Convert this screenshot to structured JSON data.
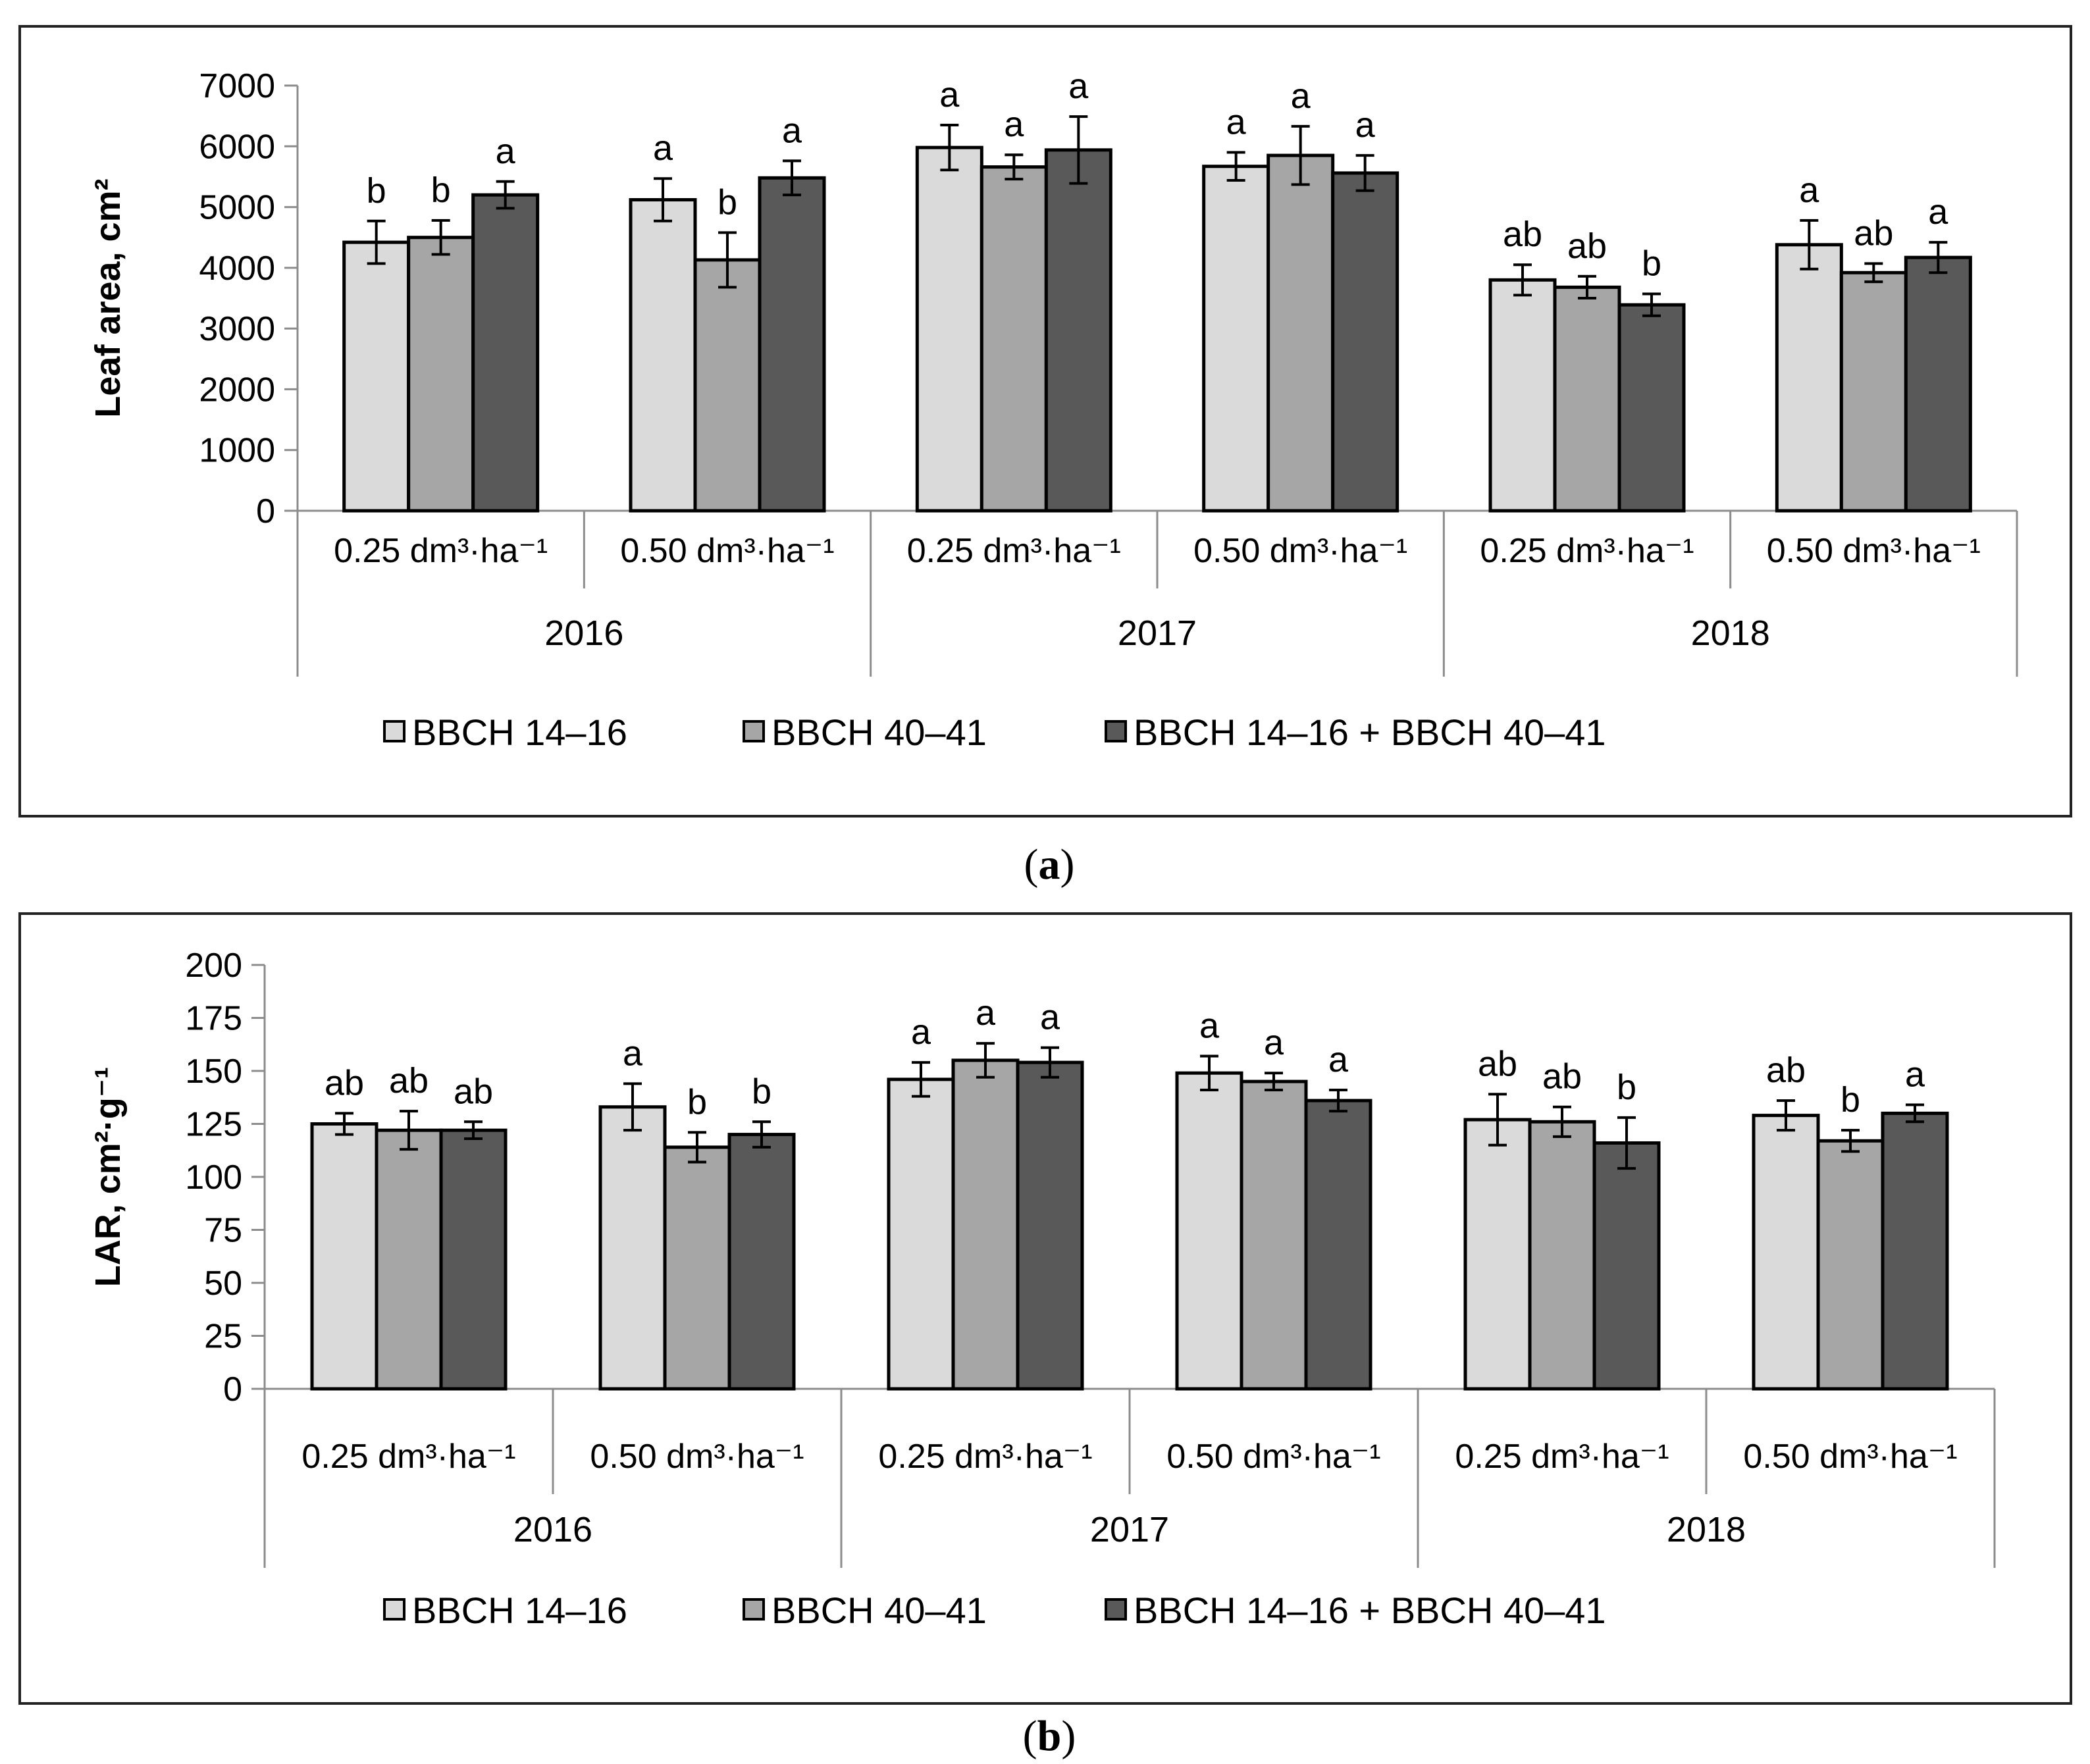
{
  "colors": {
    "BBCH 14–16": "#dadada",
    "BBCH 40–41": "#a6a6a6",
    "BBCH 14–16 + BBCH 40–41": "#595959",
    "axis": "#8c8c8c",
    "bar_stroke": "#000000"
  },
  "captions": {
    "a": {
      "open": "(",
      "label": "a",
      "close": ")"
    },
    "b": {
      "open": "(",
      "label": "b",
      "close": ")"
    }
  },
  "chart_data": [
    {
      "id": "a",
      "type": "bar",
      "title": "",
      "xlabel": "",
      "ylabel": "Leaf area, cm²",
      "ylim": [
        0,
        7000
      ],
      "yticks": [
        0,
        1000,
        2000,
        3000,
        4000,
        5000,
        6000,
        7000
      ],
      "grid": false,
      "legend_position": "bottom",
      "groups": [
        "2016",
        "2017",
        "2018"
      ],
      "categories": [
        "0.25 dm³·ha⁻¹",
        "0.50 dm³·ha⁻¹",
        "0.25 dm³·ha⁻¹",
        "0.50 dm³·ha⁻¹",
        "0.25 dm³·ha⁻¹",
        "0.50 dm³·ha⁻¹"
      ],
      "series": [
        {
          "name": "BBCH 14–16",
          "values": [
            4420,
            5120,
            5980,
            5670,
            3800,
            4380
          ],
          "errors": [
            350,
            350,
            370,
            230,
            250,
            400
          ],
          "labels": [
            "b",
            "a",
            "a",
            "a",
            "ab",
            "a"
          ]
        },
        {
          "name": "BBCH 40–41",
          "values": [
            4500,
            4130,
            5660,
            5850,
            3680,
            3920
          ],
          "errors": [
            280,
            450,
            200,
            480,
            180,
            150
          ],
          "labels": [
            "b",
            "b",
            "a",
            "a",
            "ab",
            "ab"
          ]
        },
        {
          "name": "BBCH 14–16 + BBCH 40–41",
          "values": [
            5200,
            5480,
            5940,
            5560,
            3390,
            4170
          ],
          "errors": [
            220,
            280,
            550,
            290,
            180,
            250
          ],
          "labels": [
            "a",
            "a",
            "a",
            "a",
            "b",
            "a"
          ]
        }
      ]
    },
    {
      "id": "b",
      "type": "bar",
      "title": "",
      "xlabel": "",
      "ylabel": "LAR, cm²·g⁻¹",
      "ylim": [
        0,
        200
      ],
      "yticks": [
        0,
        25,
        50,
        75,
        100,
        125,
        150,
        175,
        200
      ],
      "grid": false,
      "legend_position": "bottom",
      "groups": [
        "2016",
        "2017",
        "2018"
      ],
      "categories": [
        "0.25 dm³·ha⁻¹",
        "0.50 dm³·ha⁻¹",
        "0.25 dm³·ha⁻¹",
        "0.50 dm³·ha⁻¹",
        "0.25 dm³·ha⁻¹",
        "0.50 dm³·ha⁻¹"
      ],
      "series": [
        {
          "name": "BBCH 14–16",
          "values": [
            125,
            133,
            146,
            149,
            127,
            129
          ],
          "errors": [
            5,
            11,
            8,
            8,
            12,
            7
          ],
          "labels": [
            "ab",
            "a",
            "a",
            "a",
            "ab",
            "ab"
          ]
        },
        {
          "name": "BBCH 40–41",
          "values": [
            122,
            114,
            155,
            145,
            126,
            117
          ],
          "errors": [
            9,
            7,
            8,
            4,
            7,
            5
          ],
          "labels": [
            "ab",
            "b",
            "a",
            "a",
            "ab",
            "b"
          ]
        },
        {
          "name": "BBCH 14–16 + BBCH 40–41",
          "values": [
            122,
            120,
            154,
            136,
            116,
            130
          ],
          "errors": [
            4,
            6,
            7,
            5,
            12,
            4
          ],
          "labels": [
            "ab",
            "b",
            "a",
            "a",
            "b",
            "a"
          ]
        }
      ]
    }
  ]
}
